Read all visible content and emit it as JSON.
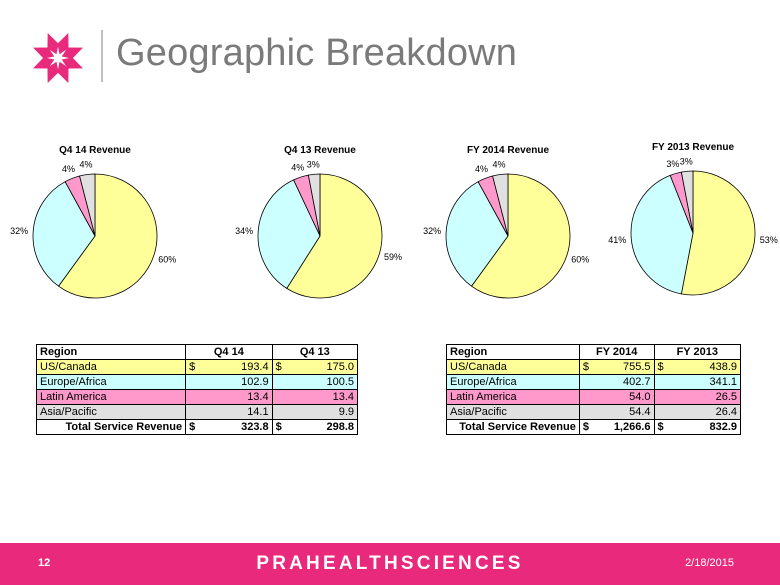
{
  "header": {
    "title": "Geographic Breakdown",
    "logo_icon": "asterisk-flower-icon",
    "logo_color": "#e8297c"
  },
  "colors": {
    "us_canada": "#ffff99",
    "europe_africa": "#ccffff",
    "latin_america": "#ff99cc",
    "asia_pacific": "#e0e0e0",
    "footer": "#e8297c"
  },
  "chart_data": [
    {
      "type": "pie",
      "title": "Q4 14 Revenue",
      "categories": [
        "US/Canada",
        "Europe/Africa",
        "Latin America",
        "Asia/Pacific"
      ],
      "values": [
        60,
        32,
        4,
        4
      ],
      "labels": [
        "60%",
        "32%",
        "4%",
        "4%"
      ]
    },
    {
      "type": "pie",
      "title": "Q4 13 Revenue",
      "categories": [
        "US/Canada",
        "Europe/Africa",
        "Latin America",
        "Asia/Pacific"
      ],
      "values": [
        59,
        34,
        4,
        3
      ],
      "labels": [
        "59%",
        "34%",
        "4%",
        "3%"
      ]
    },
    {
      "type": "pie",
      "title": "FY 2014 Revenue",
      "categories": [
        "US/Canada",
        "Europe/Africa",
        "Latin America",
        "Asia/Pacific"
      ],
      "values": [
        60,
        32,
        4,
        4
      ],
      "labels": [
        "60%",
        "32%",
        "4%",
        "4%"
      ]
    },
    {
      "type": "pie",
      "title": "FY 2013 Revenue",
      "categories": [
        "US/Canada",
        "Europe/Africa",
        "Latin America",
        "Asia/Pacific"
      ],
      "values": [
        53,
        41,
        3,
        3
      ],
      "labels": [
        "53%",
        "41%",
        "3%",
        "3%"
      ]
    }
  ],
  "tables": [
    {
      "headers": [
        "Region",
        "Q4 14",
        "Q4 13"
      ],
      "rows": [
        {
          "region": "US/Canada",
          "c1_cur": "$",
          "c1": "193.4",
          "c2_cur": "$",
          "c2": "175.0"
        },
        {
          "region": "Europe/Africa",
          "c1_cur": "",
          "c1": "102.9",
          "c2_cur": "",
          "c2": "100.5"
        },
        {
          "region": "Latin America",
          "c1_cur": "",
          "c1": "13.4",
          "c2_cur": "",
          "c2": "13.4"
        },
        {
          "region": "Asia/Pacific",
          "c1_cur": "",
          "c1": "14.1",
          "c2_cur": "",
          "c2": "9.9"
        }
      ],
      "total": {
        "label": "Total Service Revenue",
        "c1_cur": "$",
        "c1": "323.8",
        "c2_cur": "$",
        "c2": "298.8"
      }
    },
    {
      "headers": [
        "Region",
        "FY 2014",
        "FY 2013"
      ],
      "rows": [
        {
          "region": "US/Canada",
          "c1_cur": "$",
          "c1": "755.5",
          "c2_cur": "$",
          "c2": "438.9"
        },
        {
          "region": "Europe/Africa",
          "c1_cur": "",
          "c1": "402.7",
          "c2_cur": "",
          "c2": "341.1"
        },
        {
          "region": "Latin America",
          "c1_cur": "",
          "c1": "54.0",
          "c2_cur": "",
          "c2": "26.5"
        },
        {
          "region": "Asia/Pacific",
          "c1_cur": "",
          "c1": "54.4",
          "c2_cur": "",
          "c2": "26.4"
        }
      ],
      "total": {
        "label": "Total Service Revenue",
        "c1_cur": "$",
        "c1": "1,266.6",
        "c2_cur": "$",
        "c2": "832.9"
      }
    }
  ],
  "footer": {
    "page_number": "12",
    "brand": "PRAHEALTHSCIENCES",
    "date": "2/18/2015"
  }
}
